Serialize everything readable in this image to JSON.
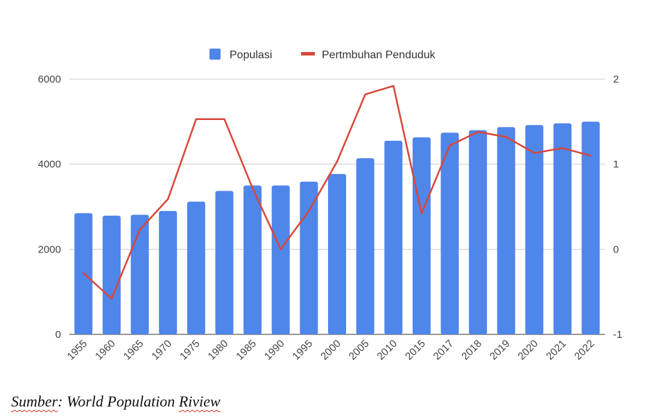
{
  "chart_data": {
    "type": "bar",
    "categories": [
      "1955",
      "1960",
      "1965",
      "1970",
      "1975",
      "1980",
      "1985",
      "1990",
      "1995",
      "2000",
      "2005",
      "2010",
      "2015",
      "2017",
      "2018",
      "2019",
      "2020",
      "2021",
      "2022"
    ],
    "series": [
      {
        "name": "Populasi",
        "type": "bar",
        "axis": "left",
        "color": "#4f86ea",
        "values": [
          2850,
          2790,
          2810,
          2900,
          3120,
          3370,
          3500,
          3500,
          3590,
          3770,
          4140,
          4550,
          4630,
          4740,
          4800,
          4870,
          4920,
          4960,
          5000
        ]
      },
      {
        "name": "Pertmbuhan Penduduk",
        "type": "line",
        "axis": "right",
        "color": "#d9473a",
        "values": [
          -0.28,
          -0.58,
          0.23,
          0.59,
          1.53,
          1.53,
          0.72,
          0.0,
          0.45,
          1.03,
          1.82,
          1.92,
          0.42,
          1.22,
          1.38,
          1.32,
          1.13,
          1.19,
          1.1
        ]
      }
    ],
    "y_left": {
      "ylim": [
        0,
        6000
      ],
      "ticks": [
        0,
        2000,
        4000,
        6000
      ]
    },
    "y_right": {
      "ylim": [
        -1,
        2
      ],
      "ticks": [
        -1,
        0,
        1,
        2
      ]
    },
    "legend": "top",
    "grid": true
  },
  "source": {
    "prefix": "Sumber",
    "rest": ": World Population ",
    "last": "Riview"
  }
}
